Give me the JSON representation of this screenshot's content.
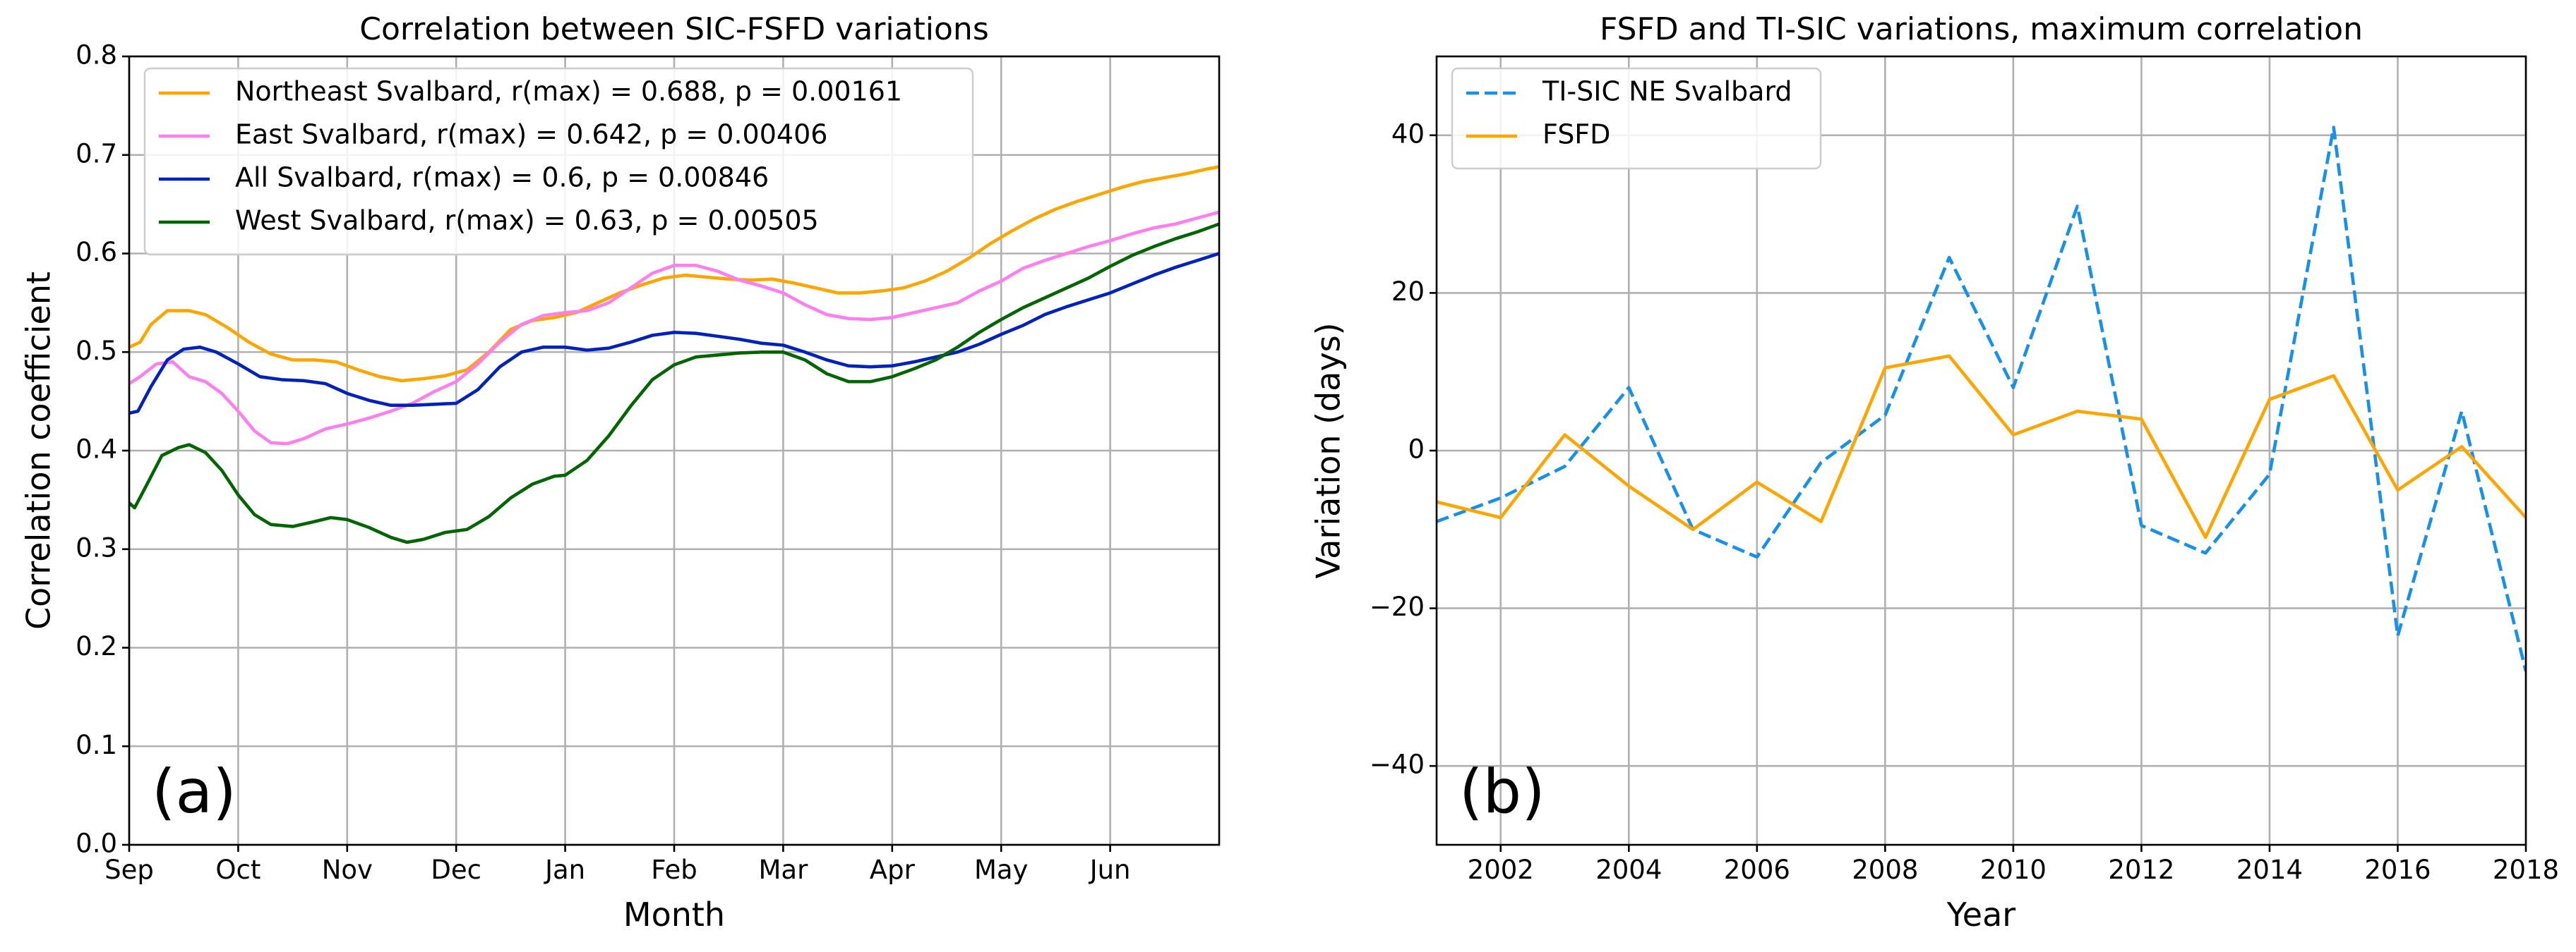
{
  "chart_data": [
    {
      "type": "line",
      "title": "Correlation between SIC-FSFD variations",
      "xlabel": "Month",
      "ylabel": "Correlation coefficient",
      "panel_label": "(a)",
      "xlim": [
        0,
        10
      ],
      "ylim": [
        0.0,
        0.8
      ],
      "grid": true,
      "legend_position": "top-left",
      "x_ticks": [
        {
          "value": 0,
          "label": "Sep"
        },
        {
          "value": 1,
          "label": "Oct"
        },
        {
          "value": 2,
          "label": "Nov"
        },
        {
          "value": 3,
          "label": "Dec"
        },
        {
          "value": 4,
          "label": "Jan"
        },
        {
          "value": 5,
          "label": "Feb"
        },
        {
          "value": 6,
          "label": "Mar"
        },
        {
          "value": 7,
          "label": "Apr"
        },
        {
          "value": 8,
          "label": "May"
        },
        {
          "value": 9,
          "label": "Jun"
        }
      ],
      "y_ticks": [
        {
          "value": 0.0,
          "label": "0.0"
        },
        {
          "value": 0.1,
          "label": "0.1"
        },
        {
          "value": 0.2,
          "label": "0.2"
        },
        {
          "value": 0.3,
          "label": "0.3"
        },
        {
          "value": 0.4,
          "label": "0.4"
        },
        {
          "value": 0.5,
          "label": "0.5"
        },
        {
          "value": 0.6,
          "label": "0.6"
        },
        {
          "value": 0.7,
          "label": "0.7"
        },
        {
          "value": 0.8,
          "label": "0.8"
        }
      ],
      "series": [
        {
          "name": "Northeast Svalbard, r(max) = 0.688, p = 0.00161",
          "color": "#ffa500",
          "dash": "solid",
          "x": [
            0,
            0.1,
            0.2,
            0.35,
            0.55,
            0.7,
            0.9,
            1.1,
            1.3,
            1.5,
            1.7,
            1.9,
            2.1,
            2.3,
            2.5,
            2.7,
            2.9,
            3.1,
            3.3,
            3.5,
            3.7,
            3.9,
            4.1,
            4.3,
            4.5,
            4.7,
            4.9,
            5.1,
            5.3,
            5.5,
            5.7,
            5.9,
            6.1,
            6.3,
            6.5,
            6.7,
            6.9,
            7.1,
            7.3,
            7.5,
            7.7,
            7.9,
            8.1,
            8.3,
            8.5,
            8.7,
            8.9,
            9.1,
            9.3,
            9.5,
            9.7,
            9.9,
            10.0
          ],
          "values": [
            0.505,
            0.51,
            0.528,
            0.542,
            0.542,
            0.538,
            0.525,
            0.51,
            0.498,
            0.492,
            0.492,
            0.49,
            0.482,
            0.475,
            0.471,
            0.473,
            0.476,
            0.482,
            0.5,
            0.523,
            0.532,
            0.535,
            0.54,
            0.55,
            0.56,
            0.568,
            0.575,
            0.578,
            0.576,
            0.574,
            0.573,
            0.574,
            0.57,
            0.565,
            0.56,
            0.56,
            0.562,
            0.565,
            0.572,
            0.582,
            0.595,
            0.61,
            0.623,
            0.635,
            0.645,
            0.653,
            0.66,
            0.667,
            0.673,
            0.677,
            0.681,
            0.686,
            0.688
          ]
        },
        {
          "name": "East Svalbard, r(max) = 0.642, p = 0.00406",
          "color": "#ff7fee",
          "dash": "solid",
          "x": [
            0,
            0.1,
            0.25,
            0.4,
            0.55,
            0.7,
            0.85,
            1.0,
            1.15,
            1.3,
            1.45,
            1.6,
            1.8,
            2.0,
            2.2,
            2.4,
            2.6,
            2.8,
            3.0,
            3.2,
            3.4,
            3.6,
            3.8,
            4.0,
            4.2,
            4.4,
            4.6,
            4.8,
            5.0,
            5.2,
            5.4,
            5.6,
            5.8,
            6.0,
            6.2,
            6.4,
            6.6,
            6.8,
            7.0,
            7.2,
            7.4,
            7.6,
            7.8,
            8.0,
            8.2,
            8.4,
            8.6,
            8.8,
            9.0,
            9.2,
            9.4,
            9.6,
            9.8,
            10.0
          ],
          "values": [
            0.468,
            0.475,
            0.488,
            0.49,
            0.475,
            0.47,
            0.458,
            0.44,
            0.42,
            0.408,
            0.407,
            0.412,
            0.422,
            0.427,
            0.433,
            0.44,
            0.448,
            0.46,
            0.47,
            0.488,
            0.51,
            0.528,
            0.537,
            0.54,
            0.542,
            0.55,
            0.565,
            0.58,
            0.588,
            0.588,
            0.582,
            0.573,
            0.567,
            0.56,
            0.548,
            0.538,
            0.534,
            0.533,
            0.535,
            0.54,
            0.545,
            0.55,
            0.562,
            0.572,
            0.585,
            0.593,
            0.6,
            0.607,
            0.613,
            0.62,
            0.626,
            0.63,
            0.636,
            0.642
          ]
        },
        {
          "name": "All Svalbard, r(max) = 0.6, p = 0.00846",
          "color": "#0022bb",
          "dash": "solid",
          "x": [
            0,
            0.08,
            0.2,
            0.35,
            0.5,
            0.65,
            0.8,
            1.0,
            1.2,
            1.4,
            1.6,
            1.8,
            2.0,
            2.2,
            2.4,
            2.6,
            2.8,
            3.0,
            3.2,
            3.4,
            3.6,
            3.8,
            4.0,
            4.2,
            4.4,
            4.6,
            4.8,
            5.0,
            5.2,
            5.4,
            5.6,
            5.8,
            6.0,
            6.2,
            6.4,
            6.6,
            6.8,
            7.0,
            7.2,
            7.4,
            7.6,
            7.8,
            8.0,
            8.2,
            8.4,
            8.6,
            8.8,
            9.0,
            9.2,
            9.4,
            9.6,
            9.8,
            10.0
          ],
          "values": [
            0.438,
            0.44,
            0.465,
            0.492,
            0.503,
            0.505,
            0.5,
            0.488,
            0.475,
            0.472,
            0.471,
            0.468,
            0.458,
            0.451,
            0.446,
            0.446,
            0.447,
            0.448,
            0.462,
            0.485,
            0.5,
            0.505,
            0.505,
            0.502,
            0.504,
            0.51,
            0.517,
            0.52,
            0.519,
            0.516,
            0.513,
            0.509,
            0.507,
            0.5,
            0.492,
            0.486,
            0.485,
            0.486,
            0.49,
            0.495,
            0.5,
            0.508,
            0.518,
            0.527,
            0.538,
            0.546,
            0.553,
            0.56,
            0.569,
            0.578,
            0.586,
            0.593,
            0.6
          ]
        },
        {
          "name": "West Svalbard, r(max) = 0.63, p = 0.00505",
          "color": "#006400",
          "dash": "solid",
          "x": [
            0,
            0.05,
            0.15,
            0.3,
            0.45,
            0.55,
            0.7,
            0.85,
            1.0,
            1.15,
            1.3,
            1.5,
            1.7,
            1.85,
            2.0,
            2.2,
            2.4,
            2.55,
            2.7,
            2.9,
            3.1,
            3.3,
            3.5,
            3.7,
            3.9,
            4.0,
            4.2,
            4.4,
            4.6,
            4.8,
            5.0,
            5.2,
            5.4,
            5.6,
            5.8,
            6.0,
            6.2,
            6.4,
            6.6,
            6.8,
            7.0,
            7.2,
            7.4,
            7.6,
            7.8,
            8.0,
            8.2,
            8.4,
            8.6,
            8.8,
            9.0,
            9.2,
            9.4,
            9.6,
            9.8,
            10.0
          ],
          "values": [
            0.347,
            0.342,
            0.363,
            0.395,
            0.403,
            0.406,
            0.398,
            0.38,
            0.355,
            0.335,
            0.325,
            0.323,
            0.328,
            0.332,
            0.33,
            0.322,
            0.312,
            0.307,
            0.31,
            0.317,
            0.32,
            0.333,
            0.352,
            0.366,
            0.374,
            0.375,
            0.39,
            0.415,
            0.445,
            0.472,
            0.487,
            0.495,
            0.497,
            0.499,
            0.5,
            0.5,
            0.492,
            0.478,
            0.47,
            0.47,
            0.475,
            0.483,
            0.492,
            0.505,
            0.52,
            0.533,
            0.545,
            0.555,
            0.565,
            0.575,
            0.587,
            0.598,
            0.607,
            0.615,
            0.622,
            0.63
          ]
        }
      ]
    },
    {
      "type": "line",
      "title": "FSFD and TI-SIC variations, maximum correlation",
      "xlabel": "Year",
      "ylabel": "Variation (days)",
      "panel_label": "(b)",
      "xlim": [
        2001,
        2018
      ],
      "ylim": [
        -50,
        50
      ],
      "grid": true,
      "legend_position": "top-left",
      "x_ticks": [
        {
          "value": 2002,
          "label": "2002"
        },
        {
          "value": 2004,
          "label": "2004"
        },
        {
          "value": 2006,
          "label": "2006"
        },
        {
          "value": 2008,
          "label": "2008"
        },
        {
          "value": 2010,
          "label": "2010"
        },
        {
          "value": 2012,
          "label": "2012"
        },
        {
          "value": 2014,
          "label": "2014"
        },
        {
          "value": 2016,
          "label": "2016"
        },
        {
          "value": 2018,
          "label": "2018"
        }
      ],
      "y_ticks": [
        {
          "value": -40,
          "label": "−40"
        },
        {
          "value": -20,
          "label": "−20"
        },
        {
          "value": 0,
          "label": "0"
        },
        {
          "value": 20,
          "label": "20"
        },
        {
          "value": 40,
          "label": "40"
        }
      ],
      "series": [
        {
          "name": "TI-SIC NE Svalbard",
          "color": "#1890e8",
          "dash": "dashed",
          "x": [
            2001,
            2002,
            2003,
            2004,
            2005,
            2006,
            2007,
            2008,
            2009,
            2010,
            2011,
            2012,
            2013,
            2014,
            2015,
            2016,
            2017,
            2018
          ],
          "values": [
            -9,
            -6,
            -2,
            8,
            -10,
            -13.5,
            -1.5,
            4.5,
            24.5,
            8,
            31,
            -9.5,
            -13,
            -3,
            41,
            -23.5,
            5,
            -28
          ]
        },
        {
          "name": "FSFD",
          "color": "#ffa500",
          "dash": "solid",
          "x": [
            2001,
            2002,
            2003,
            2004,
            2005,
            2006,
            2007,
            2008,
            2009,
            2010,
            2011,
            2012,
            2013,
            2014,
            2015,
            2016,
            2017,
            2018
          ],
          "values": [
            -6.5,
            -8.5,
            2,
            -4.5,
            -10,
            -4,
            -9,
            10.5,
            12,
            2,
            5,
            4,
            -11,
            6.5,
            9.5,
            -5,
            0.5,
            -8.5
          ]
        }
      ]
    }
  ]
}
